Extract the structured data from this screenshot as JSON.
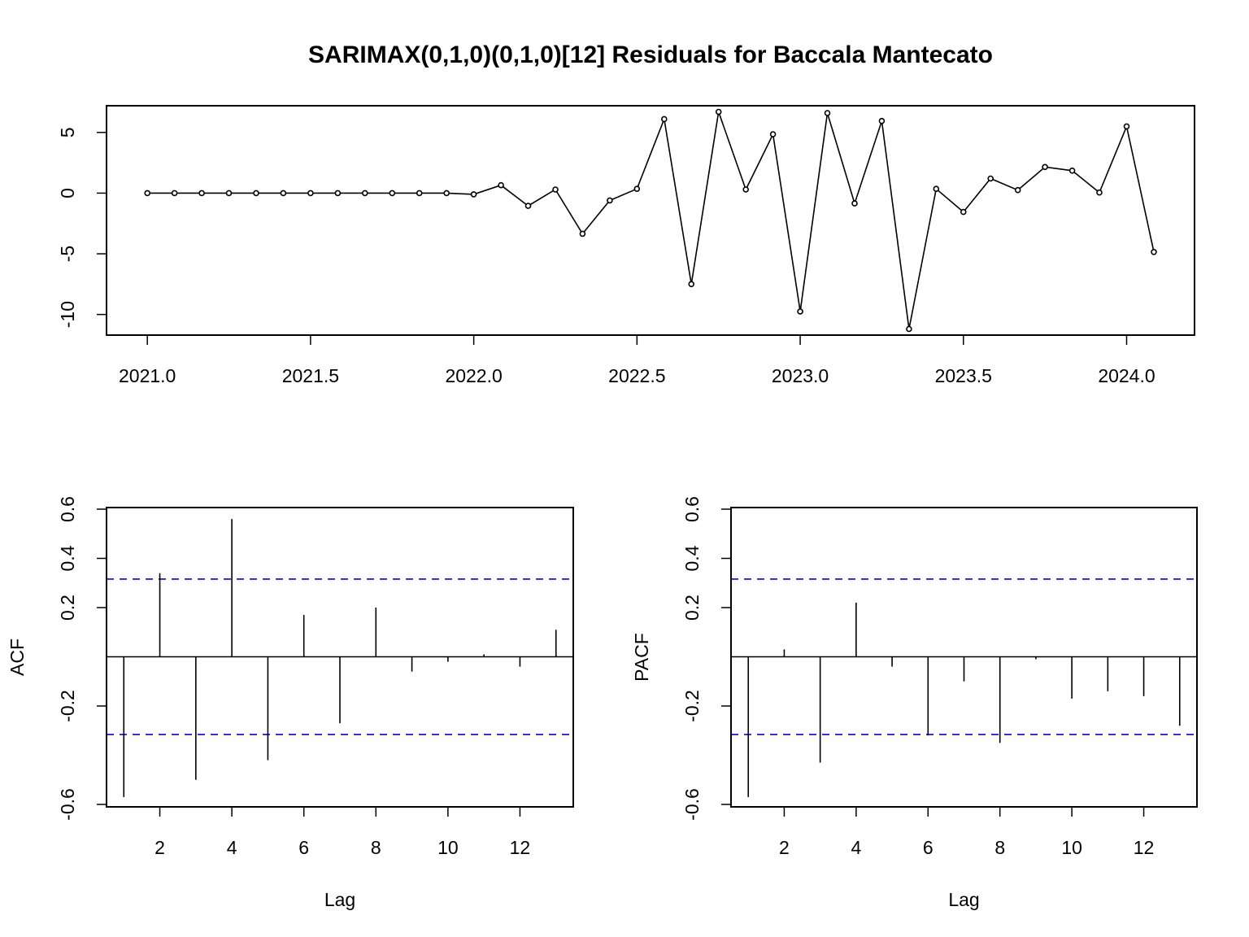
{
  "chart_data": [
    {
      "type": "line",
      "title": "SARIMAX(0,1,0)(0,1,0)[12] Residuals for Baccala Mantecato",
      "xlabel": "",
      "ylabel": "",
      "xlim": [
        2020.875,
        2024.208
      ],
      "ylim": [
        -11.7,
        7.2
      ],
      "xticks": [
        "2021.0",
        "2021.5",
        "2022.0",
        "2022.5",
        "2023.0",
        "2023.5",
        "2024.0"
      ],
      "yticks": [
        "5",
        "0",
        "-5",
        "-10"
      ],
      "x_start": 2021.0,
      "x_step": 0.0833333,
      "values": [
        0.0,
        0.0,
        0.0,
        0.0,
        0.0,
        0.0,
        0.0,
        0.0,
        0.0,
        0.0,
        0.0,
        0.0,
        -0.1,
        0.65,
        -1.05,
        0.3,
        -3.35,
        -0.6,
        0.35,
        6.1,
        -7.5,
        6.7,
        0.3,
        4.85,
        -9.75,
        6.6,
        -0.85,
        5.95,
        -11.2,
        0.35,
        -1.55,
        1.2,
        0.25,
        2.15,
        1.85,
        0.05,
        5.5,
        -4.85
      ],
      "markers": "open-circle",
      "grid": false
    },
    {
      "type": "bar",
      "style": "acf-spikes",
      "xlabel": "Lag",
      "ylabel": "ACF",
      "xlim": [
        0.52,
        13.48
      ],
      "ylim": [
        -0.6,
        0.6
      ],
      "xticks": [
        "2",
        "4",
        "6",
        "8",
        "10",
        "12"
      ],
      "yticks": [
        "-0.6",
        "-0.2",
        "0.2",
        "0.4",
        "0.6"
      ],
      "lags": [
        1,
        2,
        3,
        4,
        5,
        6,
        7,
        8,
        9,
        10,
        11,
        12,
        13
      ],
      "values": [
        -0.57,
        0.34,
        -0.5,
        0.56,
        -0.42,
        0.17,
        -0.27,
        0.2,
        -0.06,
        -0.02,
        0.01,
        -0.04,
        0.11
      ],
      "confidence_bound": 0.316,
      "confidence_color": "#0000ff"
    },
    {
      "type": "bar",
      "style": "acf-spikes",
      "xlabel": "Lag",
      "ylabel": "PACF",
      "xlim": [
        0.52,
        13.48
      ],
      "ylim": [
        -0.6,
        0.6
      ],
      "xticks": [
        "2",
        "4",
        "6",
        "8",
        "10",
        "12"
      ],
      "yticks": [
        "-0.6",
        "-0.2",
        "0.2",
        "0.4",
        "0.6"
      ],
      "lags": [
        1,
        2,
        3,
        4,
        5,
        6,
        7,
        8,
        9,
        10,
        11,
        12,
        13
      ],
      "values": [
        -0.57,
        0.03,
        -0.43,
        0.22,
        -0.04,
        -0.32,
        -0.1,
        -0.35,
        -0.01,
        -0.17,
        -0.14,
        -0.16,
        -0.28
      ],
      "confidence_bound": 0.316,
      "confidence_color": "#0000ff"
    }
  ]
}
